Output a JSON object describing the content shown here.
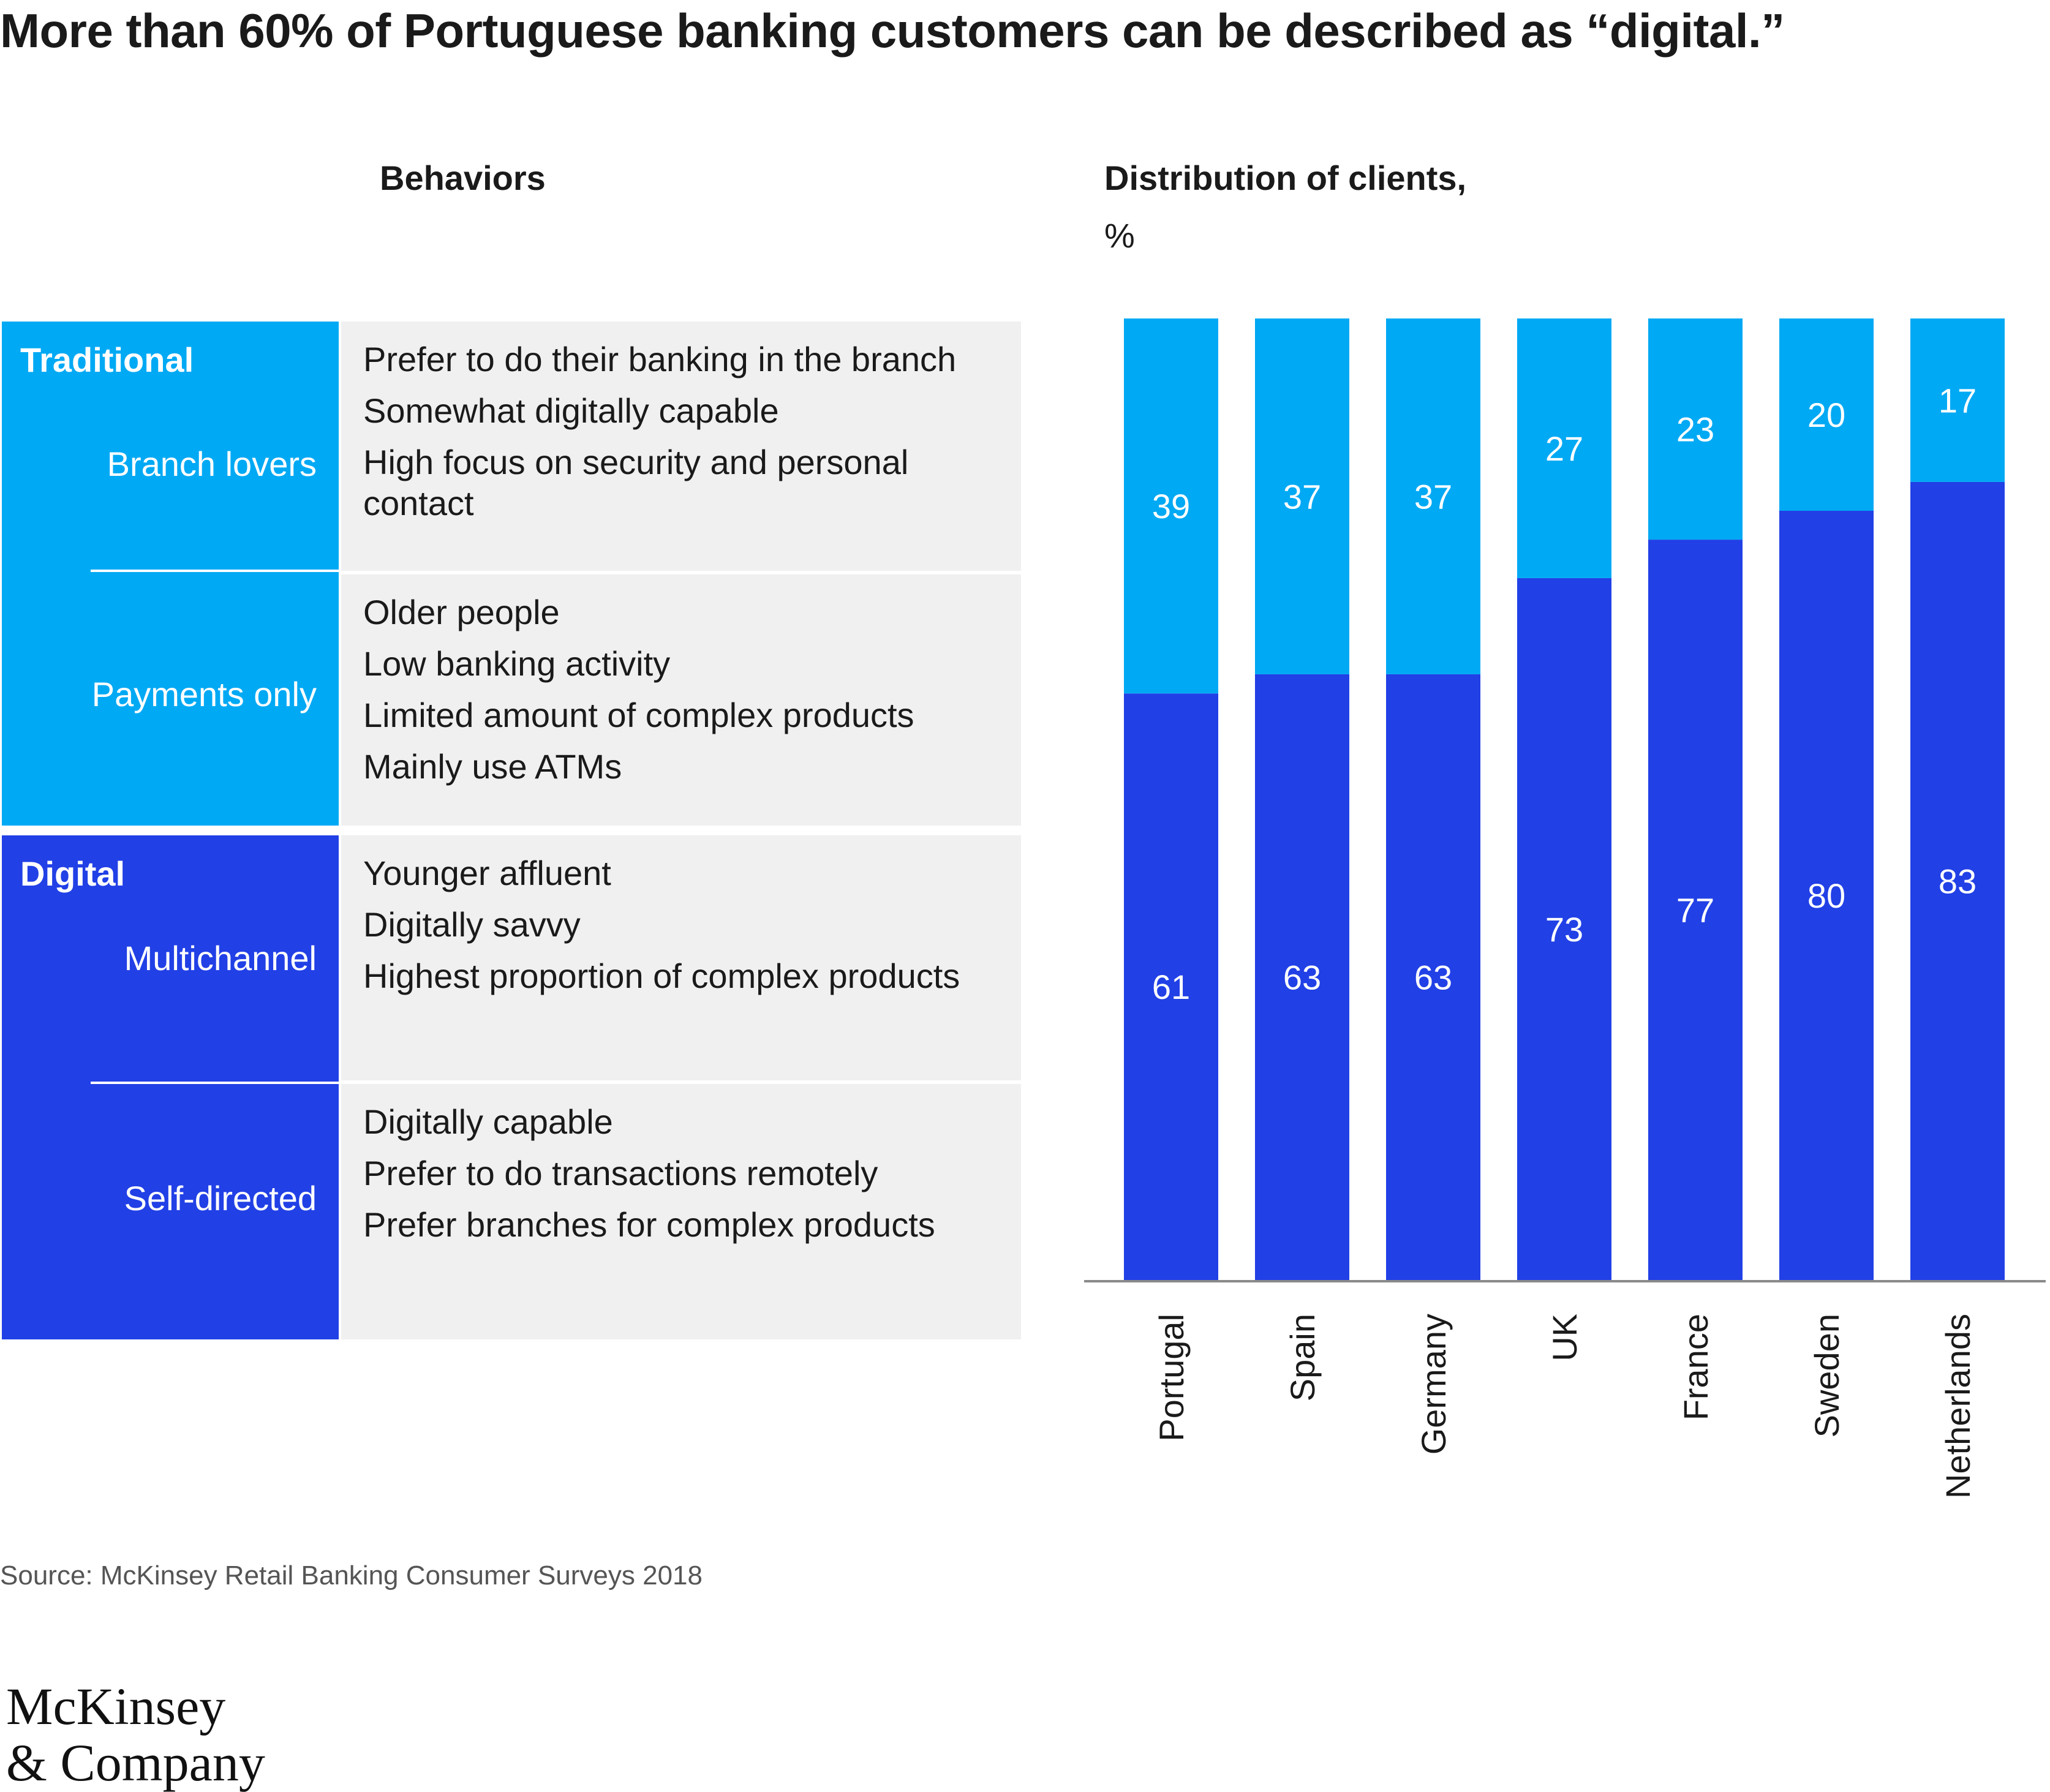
{
  "title": "More than 60% of Portuguese banking customers  can be described as “digital.”",
  "behaviors_header": "Behaviors",
  "distribution_header": "Distribution of clients,",
  "distribution_unit": "%",
  "colors": {
    "traditional": "#00a9f4",
    "digital": "#2140e6",
    "description_bg": "#f0f0f0"
  },
  "segments": {
    "traditional": {
      "label": "Traditional",
      "branch_lovers": {
        "name": "Branch lovers",
        "behaviors": [
          "Prefer to do their banking in the branch",
          "Somewhat digitally capable",
          "High focus on security and personal contact"
        ]
      },
      "payments_only": {
        "name": "Payments only",
        "behaviors": [
          "Older people",
          "Low banking activity",
          "Limited amount of complex products",
          "Mainly use ATMs"
        ]
      }
    },
    "digital": {
      "label": "Digital",
      "multichannel": {
        "name": "Multichannel",
        "behaviors": [
          "Younger affluent",
          "Digitally savvy",
          "Highest proportion of complex products"
        ]
      },
      "self_directed": {
        "name": "Self-directed",
        "behaviors": [
          "Digitally capable",
          "Prefer to do transactions remotely",
          "Prefer branches for complex products"
        ]
      }
    }
  },
  "chart_data": {
    "type": "bar",
    "stacked": true,
    "categories": [
      "Portugal",
      "Spain",
      "Germany",
      "UK",
      "France",
      "Sweden",
      "Netherlands"
    ],
    "series": [
      {
        "key": "digital",
        "values": [
          61,
          63,
          63,
          73,
          77,
          80,
          83
        ],
        "color": "#2140e6"
      },
      {
        "key": "traditional",
        "values": [
          39,
          37,
          37,
          27,
          23,
          20,
          17
        ],
        "color": "#00a9f4"
      }
    ],
    "ylim": [
      0,
      100
    ],
    "ylabel": "Distribution of clients, %",
    "xlabel": "",
    "tick_label_rotation": -90,
    "grid": false
  },
  "source": "Source: McKinsey Retail Banking Consumer Surveys 2018",
  "logo": {
    "line1": "McKinsey",
    "line2": "& Company"
  }
}
